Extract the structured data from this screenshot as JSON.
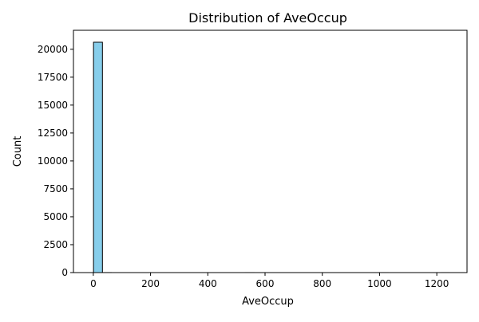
{
  "chart_data": {
    "type": "bar",
    "title": "Distribution of AveOccup",
    "xlabel": "AveOccup",
    "ylabel": "Count",
    "xlim": [
      -69.4,
      1305.6
    ],
    "ylim": [
      0,
      21700
    ],
    "xticks": [
      0,
      200,
      400,
      600,
      800,
      1000,
      1200
    ],
    "yticks": [
      0,
      2500,
      5000,
      7500,
      10000,
      12500,
      15000,
      17500,
      20000
    ],
    "grid": false,
    "bins": [
      {
        "x0": 0.69,
        "x1": 31.9,
        "count": 20630
      },
      {
        "x0": 31.9,
        "x1": 63.1,
        "count": 3
      },
      {
        "x0": 63.1,
        "x1": 94.3,
        "count": 0
      },
      {
        "x0": 94.3,
        "x1": 125.5,
        "count": 0
      },
      {
        "x0": 125.5,
        "x1": 156.7,
        "count": 0
      },
      {
        "x0": 156.7,
        "x1": 187.9,
        "count": 0
      },
      {
        "x0": 187.9,
        "x1": 219.1,
        "count": 0
      },
      {
        "x0": 219.1,
        "x1": 250.3,
        "count": 0
      },
      {
        "x0": 250.3,
        "x1": 281.5,
        "count": 0
      },
      {
        "x0": 281.5,
        "x1": 312.7,
        "count": 0
      },
      {
        "x0": 312.7,
        "x1": 343.9,
        "count": 0
      },
      {
        "x0": 343.9,
        "x1": 375.1,
        "count": 0
      },
      {
        "x0": 375.1,
        "x1": 406.3,
        "count": 0
      },
      {
        "x0": 406.3,
        "x1": 437.5,
        "count": 0
      },
      {
        "x0": 437.5,
        "x1": 468.7,
        "count": 0
      },
      {
        "x0": 468.7,
        "x1": 499.9,
        "count": 0
      },
      {
        "x0": 499.9,
        "x1": 531.1,
        "count": 0
      },
      {
        "x0": 531.1,
        "x1": 562.3,
        "count": 1
      },
      {
        "x0": 562.3,
        "x1": 593.5,
        "count": 0
      },
      {
        "x0": 593.5,
        "x1": 624.7,
        "count": 0
      },
      {
        "x0": 624.7,
        "x1": 655.9,
        "count": 0
      },
      {
        "x0": 655.9,
        "x1": 687.1,
        "count": 0
      },
      {
        "x0": 687.1,
        "x1": 718.3,
        "count": 0
      },
      {
        "x0": 718.3,
        "x1": 749.5,
        "count": 0
      },
      {
        "x0": 749.5,
        "x1": 780.7,
        "count": 0
      },
      {
        "x0": 780.7,
        "x1": 811.9,
        "count": 0
      },
      {
        "x0": 811.9,
        "x1": 843.1,
        "count": 0
      },
      {
        "x0": 843.1,
        "x1": 874.3,
        "count": 0
      },
      {
        "x0": 874.3,
        "x1": 905.5,
        "count": 0
      },
      {
        "x0": 905.5,
        "x1": 936.7,
        "count": 0
      },
      {
        "x0": 936.7,
        "x1": 967.9,
        "count": 0
      },
      {
        "x0": 967.9,
        "x1": 999.1,
        "count": 0
      },
      {
        "x0": 999.1,
        "x1": 1030.3,
        "count": 1
      },
      {
        "x0": 1030.3,
        "x1": 1061.5,
        "count": 0
      },
      {
        "x0": 1061.5,
        "x1": 1092.7,
        "count": 0
      },
      {
        "x0": 1092.7,
        "x1": 1123.9,
        "count": 0
      },
      {
        "x0": 1123.9,
        "x1": 1155.1,
        "count": 0
      },
      {
        "x0": 1155.1,
        "x1": 1186.3,
        "count": 0
      },
      {
        "x0": 1186.3,
        "x1": 1217.5,
        "count": 0
      },
      {
        "x0": 1217.5,
        "x1": 1243.3,
        "count": 1
      }
    ],
    "bar_color": "#87ceeb",
    "edge_color": "#000000"
  }
}
